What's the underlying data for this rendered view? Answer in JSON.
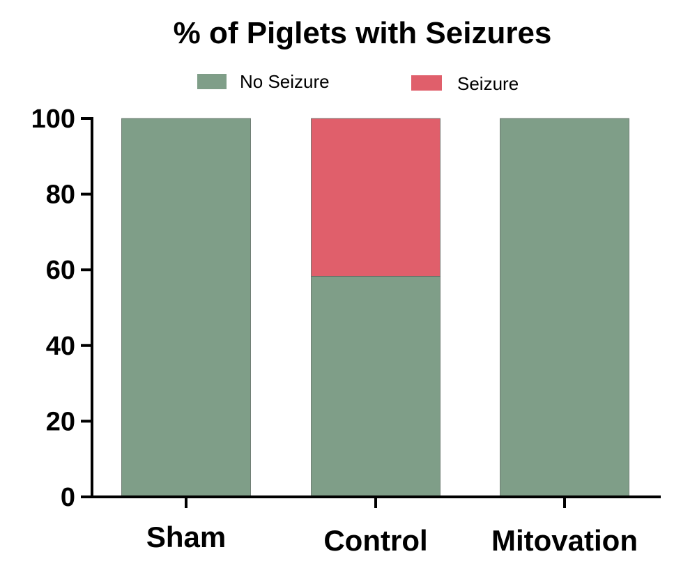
{
  "chart_data": {
    "type": "bar",
    "stacked": true,
    "title": "% of Piglets with Seizures",
    "xlabel": "",
    "ylabel": "",
    "categories": [
      "Sham",
      "Control",
      "Mitovation"
    ],
    "series": [
      {
        "name": "No Seizure",
        "color": "#7f9e88",
        "values": [
          100,
          58.3,
          100
        ]
      },
      {
        "name": "Seizure",
        "color": "#e05f6b",
        "values": [
          0,
          41.7,
          0
        ]
      }
    ],
    "ylim": [
      0,
      100
    ],
    "yticks": [
      0,
      20,
      40,
      60,
      80,
      100
    ],
    "legend_position": "top",
    "grid": false
  }
}
